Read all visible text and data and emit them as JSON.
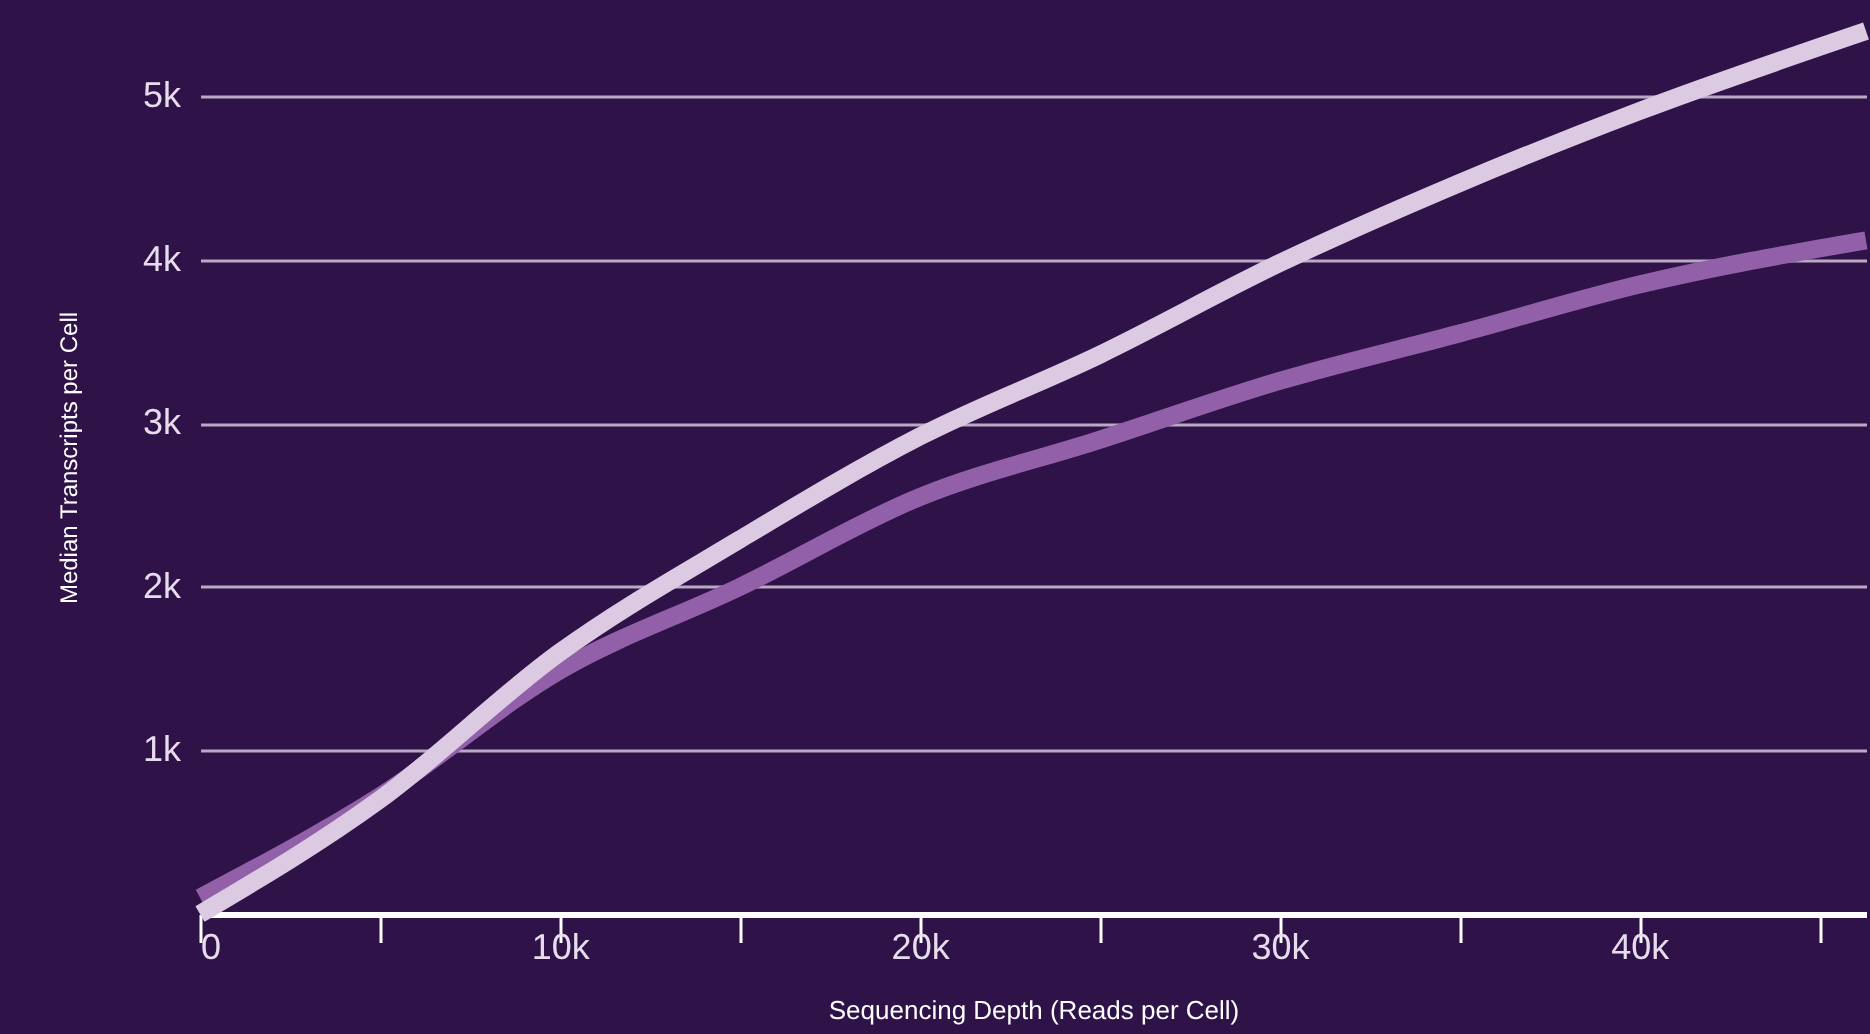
{
  "chart_data": {
    "type": "line",
    "xlabel": "Sequencing Depth (Reads per Cell)",
    "ylabel": "Median Transcripts per Cell",
    "x": [
      0,
      5000,
      10000,
      15000,
      20000,
      25000,
      30000,
      35000,
      40000,
      46300
    ],
    "series": [
      {
        "color": "#9160a8",
        "values": [
          100,
          720,
          1490,
          2000,
          2550,
          2900,
          3260,
          3550,
          3850,
          4120
        ]
      },
      {
        "color": "#dcc9e2",
        "values": [
          0,
          700,
          1600,
          2290,
          2920,
          3420,
          3980,
          4470,
          4910,
          5400
        ]
      }
    ],
    "xlim": [
      0,
      46300
    ],
    "ylim": [
      0,
      5590
    ],
    "xticks": [
      0,
      {
        "value": 5000,
        "label": null
      },
      {
        "value": 10000,
        "label": "10k"
      },
      {
        "value": 15000,
        "label": null
      },
      {
        "value": 20000,
        "label": "20k"
      },
      {
        "value": 25000,
        "label": null
      },
      {
        "value": 30000,
        "label": "30k"
      },
      {
        "value": 35000,
        "label": null
      },
      {
        "value": 40000,
        "label": "40k"
      },
      {
        "value": 45000,
        "label": null
      }
    ],
    "yticks": [
      {
        "value": 1000,
        "label": "1k"
      },
      {
        "value": 2000,
        "label": "2k"
      },
      {
        "value": 3000,
        "label": "3k"
      },
      {
        "value": 4000,
        "label": "4k"
      },
      {
        "value": 5000,
        "label": "5k"
      }
    ],
    "grid": "y",
    "marker": "none",
    "line_style": "solid"
  }
}
